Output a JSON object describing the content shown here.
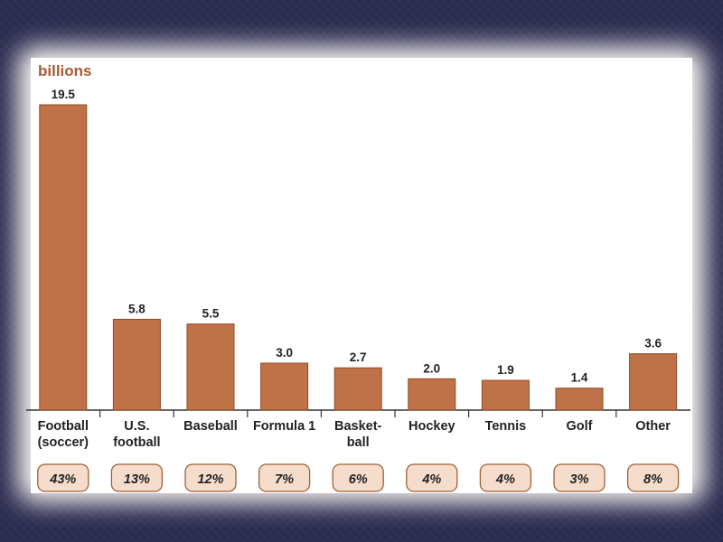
{
  "chart_data": {
    "type": "bar",
    "ylabel": "billions",
    "categories": [
      [
        "Football",
        "(soccer)"
      ],
      [
        "U.S.",
        "football"
      ],
      [
        "Baseball"
      ],
      [
        "Formula 1"
      ],
      [
        "Basket-",
        "ball"
      ],
      [
        "Hockey"
      ],
      [
        "Tennis"
      ],
      [
        "Golf"
      ],
      [
        "Other"
      ]
    ],
    "values": [
      19.5,
      5.8,
      5.5,
      3.0,
      2.7,
      2.0,
      1.9,
      1.4,
      3.6
    ],
    "value_labels": [
      "19.5",
      "5.8",
      "5.5",
      "3.0",
      "2.7",
      "2.0",
      "1.9",
      "1.4",
      "3.6"
    ],
    "shares": [
      "43%",
      "13%",
      "12%",
      "7%",
      "6%",
      "4%",
      "4%",
      "3%",
      "8%"
    ],
    "ylim": [
      0,
      19.5
    ],
    "grid": false,
    "colors": {
      "bar": "#bf7248",
      "bar_edge": "#8f4a27",
      "share_fill": "#f6dccb",
      "share_edge": "#a0603b",
      "unit_label": "#a85a33",
      "text": "#222222"
    }
  }
}
